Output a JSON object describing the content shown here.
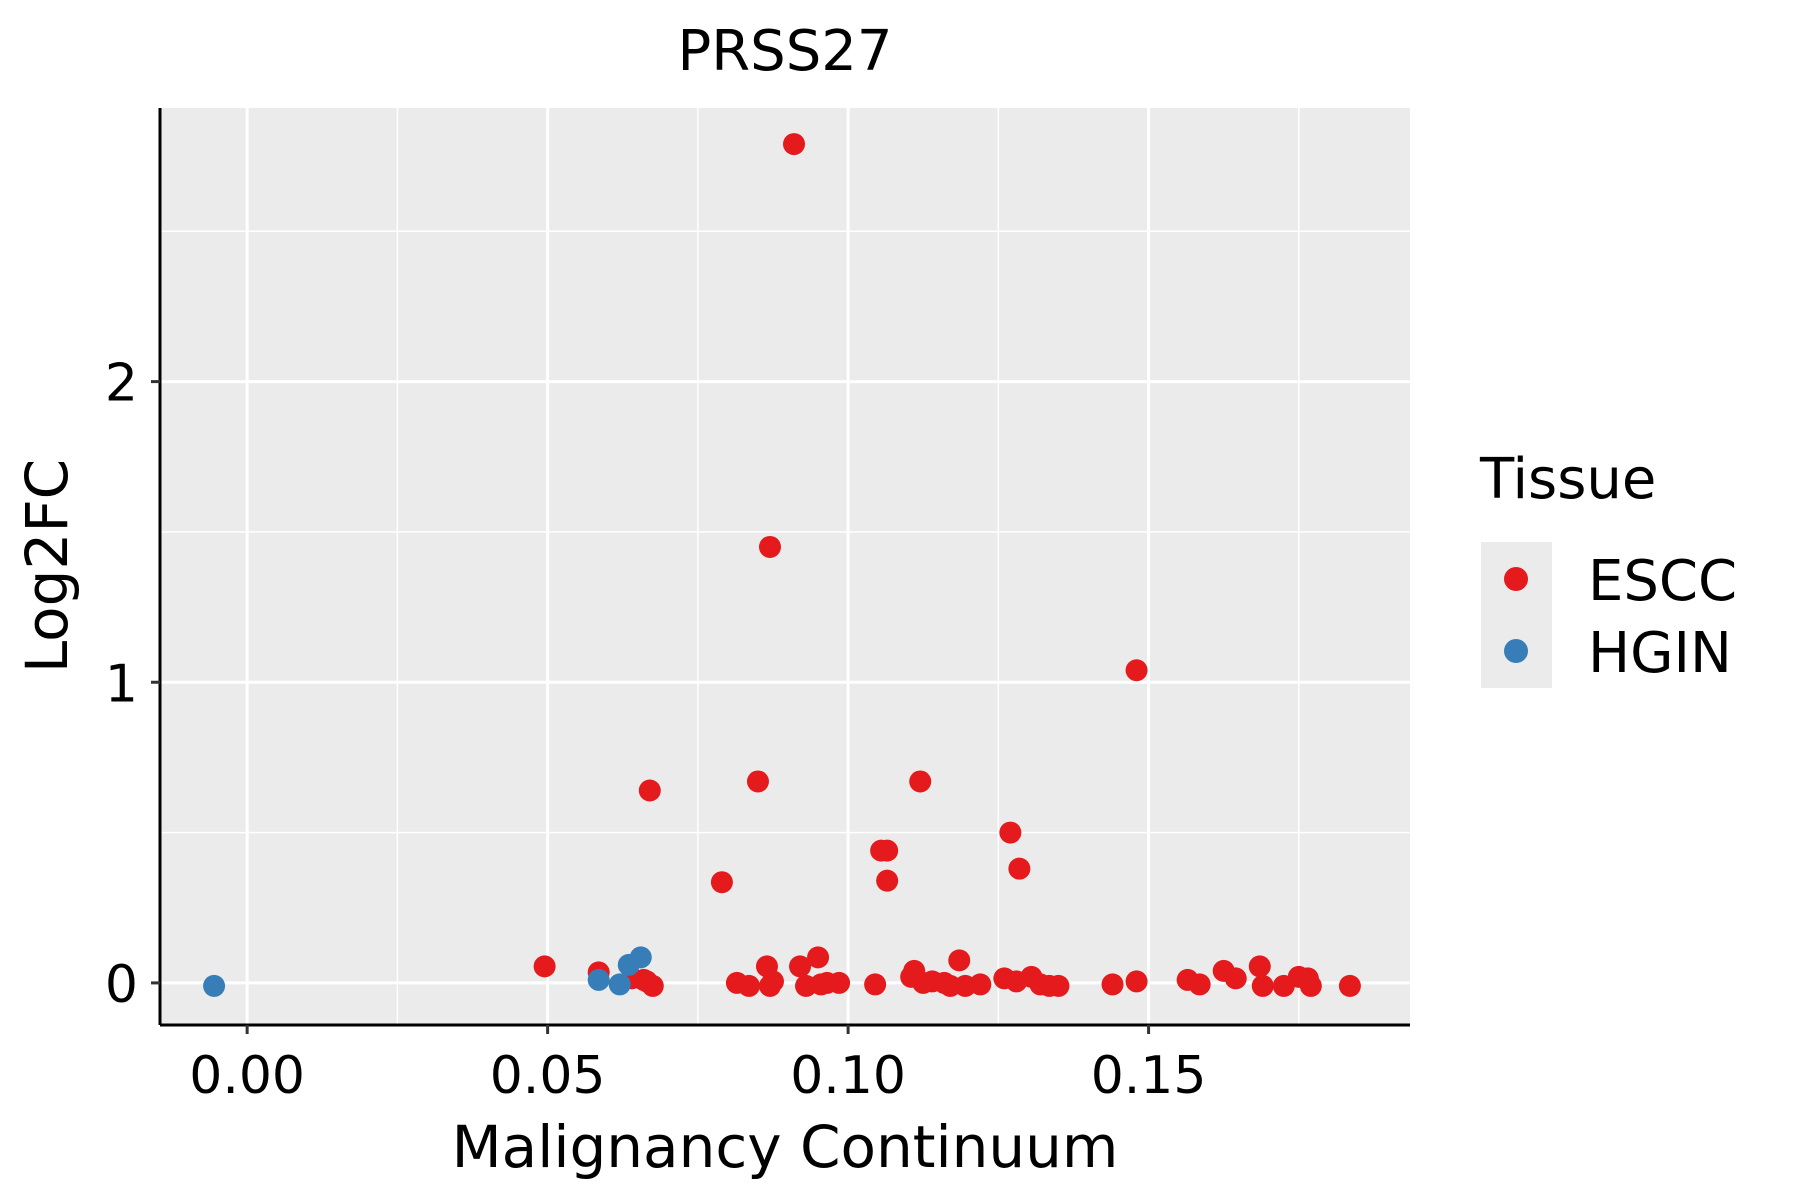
{
  "chart_data": {
    "type": "scatter",
    "title": "PRSS27",
    "xlabel": "Malignancy Continuum",
    "ylabel": "Log2FC",
    "xlim": [
      -0.0145,
      0.1935
    ],
    "ylim": [
      -0.14,
      2.91
    ],
    "x_ticks": [
      0.0,
      0.05,
      0.1,
      0.15
    ],
    "x_tick_labels": [
      "0.00",
      "0.05",
      "0.10",
      "0.15"
    ],
    "y_ticks": [
      0,
      1,
      2
    ],
    "y_tick_labels": [
      "0",
      "1",
      "2"
    ],
    "grid": true,
    "legend_position": "right",
    "legend_title": "Tissue",
    "series": [
      {
        "name": "ESCC",
        "color": "#e41a1c",
        "points": [
          [
            0.0495,
            0.055
          ],
          [
            0.0585,
            0.035
          ],
          [
            0.064,
            0.015
          ],
          [
            0.066,
            0.01
          ],
          [
            0.0665,
            0.005
          ],
          [
            0.067,
            0.64
          ],
          [
            0.0675,
            -0.01
          ],
          [
            0.079,
            0.335
          ],
          [
            0.0815,
            0.0
          ],
          [
            0.0835,
            -0.01
          ],
          [
            0.085,
            0.67
          ],
          [
            0.0865,
            0.055
          ],
          [
            0.087,
            1.45
          ],
          [
            0.087,
            -0.01
          ],
          [
            0.0875,
            0.005
          ],
          [
            0.091,
            2.79
          ],
          [
            0.092,
            0.055
          ],
          [
            0.093,
            -0.01
          ],
          [
            0.095,
            0.085
          ],
          [
            0.0955,
            -0.005
          ],
          [
            0.0965,
            0.0
          ],
          [
            0.0985,
            0.0
          ],
          [
            0.1045,
            -0.005
          ],
          [
            0.1055,
            0.44
          ],
          [
            0.1065,
            0.44
          ],
          [
            0.1065,
            0.34
          ],
          [
            0.1105,
            0.02
          ],
          [
            0.111,
            0.04
          ],
          [
            0.112,
            0.67
          ],
          [
            0.1125,
            0.0
          ],
          [
            0.114,
            0.005
          ],
          [
            0.116,
            0.0
          ],
          [
            0.117,
            -0.01
          ],
          [
            0.1185,
            0.075
          ],
          [
            0.1195,
            -0.01
          ],
          [
            0.122,
            -0.005
          ],
          [
            0.126,
            0.015
          ],
          [
            0.127,
            0.5
          ],
          [
            0.128,
            0.005
          ],
          [
            0.1285,
            0.38
          ],
          [
            0.1305,
            0.02
          ],
          [
            0.132,
            -0.005
          ],
          [
            0.1335,
            -0.01
          ],
          [
            0.135,
            -0.01
          ],
          [
            0.144,
            -0.005
          ],
          [
            0.148,
            0.005
          ],
          [
            0.148,
            1.04
          ],
          [
            0.1565,
            0.01
          ],
          [
            0.1585,
            -0.005
          ],
          [
            0.1625,
            0.04
          ],
          [
            0.1645,
            0.015
          ],
          [
            0.1685,
            0.055
          ],
          [
            0.169,
            -0.01
          ],
          [
            0.1725,
            -0.01
          ],
          [
            0.175,
            0.02
          ],
          [
            0.1765,
            0.015
          ],
          [
            0.177,
            -0.01
          ],
          [
            0.1835,
            -0.01
          ]
        ]
      },
      {
        "name": "HGIN",
        "color": "#377eb8",
        "points": [
          [
            -0.0055,
            -0.01
          ],
          [
            0.0585,
            0.01
          ],
          [
            0.062,
            -0.005
          ],
          [
            0.0635,
            0.06
          ],
          [
            0.0655,
            0.085
          ]
        ]
      }
    ]
  },
  "legend": {
    "title": "Tissue",
    "items": [
      {
        "label": "ESCC",
        "color": "#e41a1c"
      },
      {
        "label": "HGIN",
        "color": "#377eb8"
      }
    ]
  }
}
